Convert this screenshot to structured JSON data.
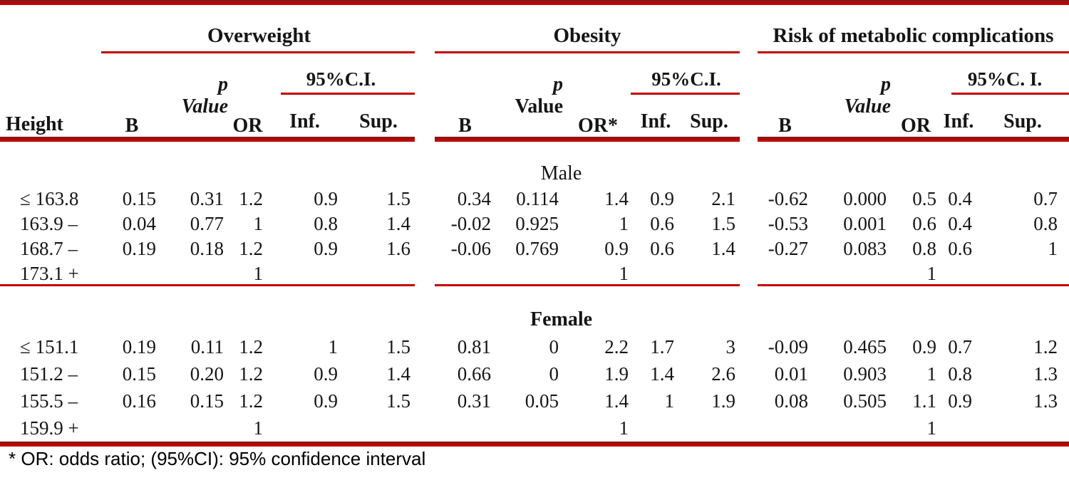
{
  "colors": {
    "accent": "#c00000",
    "text": "#151515"
  },
  "table": {
    "row_header": "Height",
    "col_labels": {
      "b": "B",
      "inf": "Inf.",
      "sup": "Sup."
    },
    "groups": [
      {
        "label": "Overweight",
        "p_line1": "p",
        "p_line2": "Value",
        "p_line2_italic": true,
        "or_label": "OR",
        "ci_label": "95%C.I."
      },
      {
        "label": "Obesity",
        "p_line1": "p",
        "p_line2": "Value",
        "p_line2_italic": false,
        "or_label": "OR*",
        "ci_label": "95%C.I."
      },
      {
        "label": "Risk of metabolic complications",
        "p_line1": "p",
        "p_line2": "Value",
        "p_line2_italic": true,
        "or_label": "OR",
        "ci_label": "95%C. I."
      }
    ],
    "sections": [
      {
        "label": "Male",
        "bold": false,
        "rows": [
          {
            "height": "≤ 163.8",
            "cells": [
              [
                "0.15",
                "0.31",
                "1.2",
                "0.9",
                "1.5"
              ],
              [
                "0.34",
                "0.114",
                "1.4",
                "0.9",
                "2.1"
              ],
              [
                "-0.62",
                "0.000",
                "0.5",
                "0.4",
                "0.7"
              ]
            ]
          },
          {
            "height": "163.9 –",
            "cells": [
              [
                "0.04",
                "0.77",
                "1",
                "0.8",
                "1.4"
              ],
              [
                "-0.02",
                "0.925",
                "1",
                "0.6",
                "1.5"
              ],
              [
                "-0.53",
                "0.001",
                "0.6",
                "0.4",
                "0.8"
              ]
            ]
          },
          {
            "height": "168.7 –",
            "cells": [
              [
                "0.19",
                "0.18",
                "1.2",
                "0.9",
                "1.6"
              ],
              [
                "-0.06",
                "0.769",
                "0.9",
                "0.6",
                "1.4"
              ],
              [
                "-0.27",
                "0.083",
                "0.8",
                "0.6",
                "1"
              ]
            ]
          },
          {
            "height": "173.1 +",
            "cells": [
              [
                "",
                "",
                "1",
                "",
                ""
              ],
              [
                "",
                "",
                "1",
                "",
                ""
              ],
              [
                "",
                "",
                "1",
                "",
                ""
              ]
            ]
          }
        ]
      },
      {
        "label": "Female",
        "bold": true,
        "rows": [
          {
            "height": "≤ 151.1",
            "cells": [
              [
                "0.19",
                "0.11",
                "1.2",
                "1",
                "1.5"
              ],
              [
                "0.81",
                "0",
                "2.2",
                "1.7",
                "3"
              ],
              [
                "-0.09",
                "0.465",
                "0.9",
                "0.7",
                "1.2"
              ]
            ]
          },
          {
            "height": "151.2 –",
            "cells": [
              [
                "0.15",
                "0.20",
                "1.2",
                "0.9",
                "1.4"
              ],
              [
                "0.66",
                "0",
                "1.9",
                "1.4",
                "2.6"
              ],
              [
                "0.01",
                "0.903",
                "1",
                "0.8",
                "1.3"
              ]
            ]
          },
          {
            "height": "155.5 –",
            "cells": [
              [
                "0.16",
                "0.15",
                "1.2",
                "0.9",
                "1.5"
              ],
              [
                "0.31",
                "0.05",
                "1.4",
                "1",
                "1.9"
              ],
              [
                "0.08",
                "0.505",
                "1.1",
                "0.9",
                "1.3"
              ]
            ]
          },
          {
            "height": "159.9 +",
            "cells": [
              [
                "",
                "",
                "1",
                "",
                ""
              ],
              [
                "",
                "",
                "1",
                "",
                ""
              ],
              [
                "",
                "",
                "1",
                "",
                ""
              ]
            ]
          }
        ]
      }
    ],
    "footnote": "* OR: odds ratio; (95%CI): 95% confidence interval"
  }
}
